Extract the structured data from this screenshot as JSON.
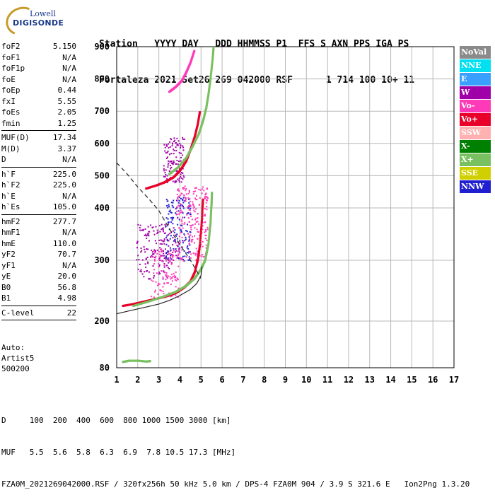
{
  "logo": {
    "line1": "Lowell",
    "line2": "DIGISONDE"
  },
  "header": {
    "line1": "Station   YYYY DAY   DDD HHMMSS P1  FFS S AXN PPS IGA PS",
    "line2": "Fortaleza 2021 Set26 269 042000 RSF      1 714 100 10+ 11"
  },
  "params": {
    "group1": [
      {
        "label": "foF2",
        "value": "5.150"
      },
      {
        "label": "foF1",
        "value": "N/A"
      },
      {
        "label": "foF1p",
        "value": "N/A"
      },
      {
        "label": "foE",
        "value": "N/A"
      },
      {
        "label": "foEp",
        "value": "0.44"
      },
      {
        "label": "fxI",
        "value": "5.55"
      },
      {
        "label": "foEs",
        "value": "2.05"
      },
      {
        "label": "fmin",
        "value": "1.25"
      }
    ],
    "group2": [
      {
        "label": "MUF(D)",
        "value": "17.34"
      },
      {
        "label": "M(D)",
        "value": "3.37"
      },
      {
        "label": "D",
        "value": "N/A"
      }
    ],
    "group3": [
      {
        "label": "h`F",
        "value": "225.0"
      },
      {
        "label": "h`F2",
        "value": "225.0"
      },
      {
        "label": "h`E",
        "value": "N/A"
      },
      {
        "label": "h`Es",
        "value": "105.0"
      }
    ],
    "group4": [
      {
        "label": "hmF2",
        "value": "277.7"
      },
      {
        "label": "hmF1",
        "value": "N/A"
      },
      {
        "label": "hmE",
        "value": "110.0"
      },
      {
        "label": "yF2",
        "value": "70.7"
      },
      {
        "label": "yF1",
        "value": "N/A"
      },
      {
        "label": "yE",
        "value": "20.0"
      },
      {
        "label": "B0",
        "value": "56.8"
      },
      {
        "label": "B1",
        "value": "4.98"
      }
    ],
    "group5": [
      {
        "label": "C-level",
        "value": "22"
      }
    ]
  },
  "auto": {
    "line1": "Auto:",
    "line2": "Artist5",
    "line3": "500200"
  },
  "legend": [
    {
      "label": "NoVal",
      "color": "#8a8a8a"
    },
    {
      "label": "NNE",
      "color": "#00e0f0"
    },
    {
      "label": "E",
      "color": "#3aa0ff"
    },
    {
      "label": "W",
      "color": "#a000a8"
    },
    {
      "label": "Vo-",
      "color": "#ff3ab8"
    },
    {
      "label": "Vo+",
      "color": "#e8002a"
    },
    {
      "label": "SSW",
      "color": "#ffb0b0"
    },
    {
      "label": "X-",
      "color": "#008000"
    },
    {
      "label": "X+",
      "color": "#78c060"
    },
    {
      "label": "SSE",
      "color": "#d0d000"
    },
    {
      "label": "NNW",
      "color": "#2020d0"
    }
  ],
  "bottom": {
    "line1": "D     100  200  400  600  800 1000 1500 3000 [km]",
    "line2": "MUF   5.5  5.6  5.8  6.3  6.9  7.8 10.5 17.3 [MHz]",
    "line3": "FZA0M_2021269042000.RSF / 320fx256h 50 kHz 5.0 km / DPS-4 FZA0M 904 / 3.9 S 321.6 E   Ion2Png 1.3.20"
  },
  "chart_data": {
    "type": "scatter",
    "xlim": [
      1,
      17
    ],
    "ylim": [
      80,
      900
    ],
    "x_ticks": [
      1,
      2,
      3,
      4,
      5,
      6,
      7,
      8,
      9,
      10,
      11,
      12,
      13,
      14,
      15,
      16,
      17
    ],
    "y_ticks": [
      80,
      200,
      300,
      400,
      500,
      600,
      700,
      800,
      900
    ],
    "x_unit": "MHz",
    "y_unit": "km",
    "grid": true,
    "legend_position": "right",
    "traces": [
      {
        "name": "Vo+",
        "color": "#e8002a",
        "points": [
          [
            1.3,
            225
          ],
          [
            1.8,
            228
          ],
          [
            2.3,
            232
          ],
          [
            2.8,
            236
          ],
          [
            3.3,
            240
          ],
          [
            3.8,
            246
          ],
          [
            4.2,
            255
          ],
          [
            4.5,
            265
          ],
          [
            4.7,
            280
          ],
          [
            4.85,
            300
          ],
          [
            4.95,
            330
          ],
          [
            5.05,
            380
          ],
          [
            5.1,
            430
          ]
        ]
      },
      {
        "name": "X+",
        "color": "#78c060",
        "points": [
          [
            1.8,
            225
          ],
          [
            2.5,
            232
          ],
          [
            3.2,
            240
          ],
          [
            3.8,
            248
          ],
          [
            4.3,
            258
          ],
          [
            4.7,
            270
          ],
          [
            5.0,
            285
          ],
          [
            5.2,
            300
          ],
          [
            5.35,
            330
          ],
          [
            5.45,
            370
          ],
          [
            5.5,
            410
          ],
          [
            5.52,
            450
          ]
        ]
      },
      {
        "name": "Vo+",
        "color": "#e8002a",
        "points": [
          [
            2.4,
            460
          ],
          [
            2.9,
            470
          ],
          [
            3.3,
            480
          ],
          [
            3.7,
            495
          ],
          [
            4.0,
            515
          ],
          [
            4.3,
            545
          ],
          [
            4.5,
            580
          ],
          [
            4.7,
            620
          ],
          [
            4.85,
            660
          ],
          [
            4.95,
            700
          ]
        ]
      },
      {
        "name": "X+",
        "color": "#78c060",
        "points": [
          [
            3.5,
            505
          ],
          [
            3.9,
            525
          ],
          [
            4.3,
            555
          ],
          [
            4.6,
            590
          ],
          [
            4.9,
            630
          ],
          [
            5.1,
            670
          ],
          [
            5.25,
            710
          ],
          [
            5.35,
            750
          ],
          [
            5.45,
            800
          ],
          [
            5.55,
            860
          ],
          [
            5.6,
            900
          ]
        ]
      },
      {
        "name": "Vo-",
        "color": "#ff3ab8",
        "points": [
          [
            3.5,
            760
          ],
          [
            3.8,
            775
          ],
          [
            4.1,
            795
          ],
          [
            4.3,
            820
          ],
          [
            4.5,
            850
          ],
          [
            4.7,
            890
          ]
        ]
      },
      {
        "name": "X+",
        "color": "#78c060",
        "points": [
          [
            1.3,
            95
          ],
          [
            1.6,
            98
          ],
          [
            2.0,
            98
          ],
          [
            2.4,
            96
          ],
          [
            2.6,
            97
          ]
        ]
      }
    ],
    "clouds": [
      {
        "name": "W",
        "color": "#a000a8",
        "x": [
          1.9,
          3.8
        ],
        "y": [
          270,
          370
        ]
      },
      {
        "name": "W",
        "color": "#a000a8",
        "x": [
          3.2,
          4.2
        ],
        "y": [
          480,
          620
        ]
      },
      {
        "name": "NNW",
        "color": "#2020d0",
        "x": [
          3.3,
          4.5
        ],
        "y": [
          300,
          440
        ]
      },
      {
        "name": "Vo-",
        "color": "#ff3ab8",
        "x": [
          3.8,
          5.3
        ],
        "y": [
          300,
          470
        ]
      },
      {
        "name": "Vo-",
        "color": "#ff3ab8",
        "x": [
          2.6,
          3.9
        ],
        "y": [
          240,
          330
        ]
      }
    ],
    "curves": [
      {
        "style": "dashed",
        "points": [
          [
            1.0,
            540
          ],
          [
            1.5,
            505
          ],
          [
            2.0,
            465
          ],
          [
            2.5,
            430
          ],
          [
            3.0,
            395
          ],
          [
            3.5,
            360
          ],
          [
            4.0,
            330
          ],
          [
            4.5,
            300
          ],
          [
            5.0,
            270
          ]
        ]
      },
      {
        "style": "solid",
        "points": [
          [
            1.0,
            212
          ],
          [
            1.5,
            216
          ],
          [
            2.0,
            220
          ],
          [
            2.5,
            224
          ],
          [
            3.0,
            228
          ],
          [
            3.5,
            234
          ],
          [
            4.0,
            242
          ],
          [
            4.5,
            252
          ],
          [
            4.8,
            262
          ],
          [
            5.0,
            275
          ],
          [
            5.05,
            290
          ]
        ]
      }
    ]
  }
}
